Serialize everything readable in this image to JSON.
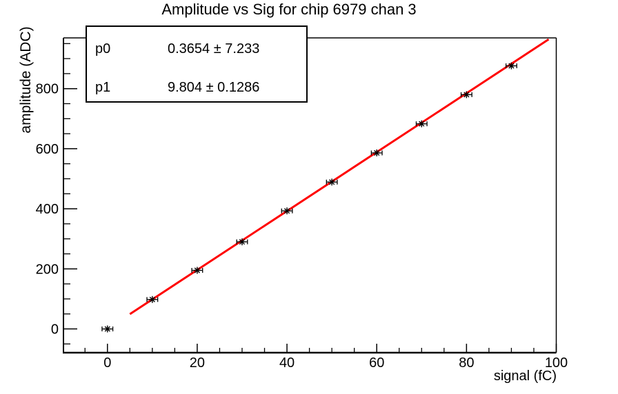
{
  "page": {
    "background": "#ffffff",
    "text_color": "#000000"
  },
  "title": "Amplitude vs Sig for chip 6979 chan 3",
  "stats_box": {
    "rows": [
      {
        "label": "p0",
        "value": "0.3654 ± 7.233"
      },
      {
        "label": "p1",
        "value": "9.804 ± 0.1286"
      }
    ]
  },
  "chart_data": {
    "type": "scatter",
    "title": "Amplitude vs Sig for chip 6979 chan 3",
    "xlabel": "signal (fC)",
    "ylabel": "amplitude (ADC)",
    "xlim": [
      -9.8,
      100
    ],
    "ylim": [
      -79,
      969
    ],
    "x_ticks": [
      0,
      20,
      40,
      60,
      80,
      100
    ],
    "y_ticks": [
      0,
      200,
      400,
      600,
      800
    ],
    "x_minor_step": 5,
    "y_minor_step": 50,
    "grid": false,
    "legend": "none",
    "marker": "asterisk",
    "marker_color": "#000000",
    "axis_color": "#000000",
    "points": {
      "x": [
        0,
        10,
        20,
        30,
        40,
        50,
        60,
        70,
        80,
        90
      ],
      "y": [
        0,
        98,
        195,
        290,
        393,
        489,
        586,
        683,
        780,
        876
      ],
      "x_err": 1.2
    },
    "fit_line": {
      "type": "linear",
      "p0": 0.3654,
      "p1": 9.804,
      "x_range": [
        5,
        98.3
      ],
      "color": "#ff0000",
      "width": 3
    }
  }
}
